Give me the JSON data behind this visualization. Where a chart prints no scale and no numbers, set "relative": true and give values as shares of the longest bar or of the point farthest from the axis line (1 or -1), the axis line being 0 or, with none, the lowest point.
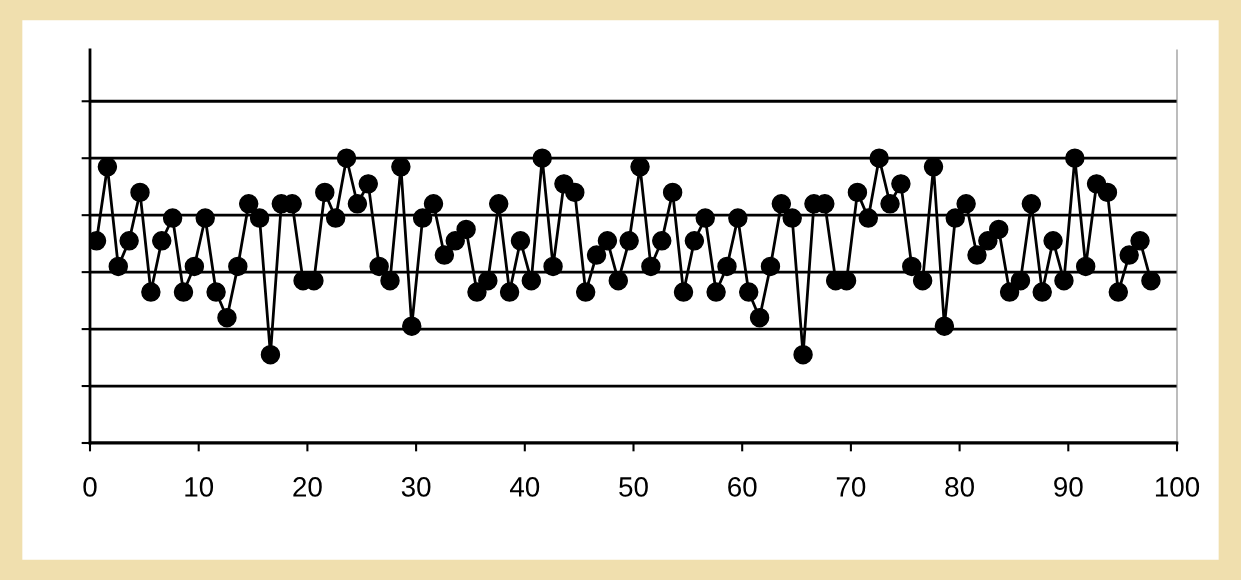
{
  "chart_data": {
    "type": "line",
    "relative": true,
    "xlim": [
      0,
      100
    ],
    "xticks": [
      0,
      10,
      20,
      30,
      40,
      50,
      60,
      70,
      80,
      90,
      100
    ],
    "grid": "y",
    "marker": "circle",
    "line_style": "solid",
    "tick_labels": "x",
    "x": [
      0.6,
      1.6,
      2.6,
      3.6,
      4.6,
      5.6,
      6.6,
      7.6,
      8.6,
      9.6,
      10.6,
      11.6,
      12.6,
      13.6,
      14.6,
      15.6,
      16.6,
      17.6,
      18.6,
      19.6,
      20.6,
      21.6,
      22.6,
      23.6,
      24.6,
      25.6,
      26.6,
      27.6,
      28.6,
      29.6,
      30.6,
      31.6,
      32.6,
      33.6,
      34.6,
      35.6,
      36.6,
      37.6,
      38.6,
      39.6,
      40.6,
      41.6,
      42.6,
      43.6,
      44.6,
      45.6,
      46.6,
      47.6,
      48.6,
      49.6,
      50.6,
      51.6,
      52.6,
      53.6,
      54.6,
      55.6,
      56.6,
      57.6,
      58.6,
      59.6,
      60.6,
      61.6,
      62.6,
      63.6,
      64.6,
      65.6,
      66.6,
      67.6,
      68.6,
      69.6,
      70.6,
      71.6,
      72.6,
      73.6,
      74.6,
      75.6,
      76.6,
      77.6,
      78.6,
      79.6,
      80.6,
      81.6,
      82.6,
      83.6,
      84.6,
      85.6,
      86.6,
      87.6,
      88.6,
      89.6,
      90.6,
      91.6,
      92.6,
      93.6,
      94.6,
      95.6,
      96.6,
      97.6
    ],
    "series": [
      {
        "color": "#000000",
        "values": [
          0.71,
          0.97,
          0.62,
          0.71,
          0.88,
          0.53,
          0.71,
          0.79,
          0.53,
          0.62,
          0.79,
          0.53,
          0.44,
          0.62,
          0.84,
          0.79,
          0.31,
          0.84,
          0.84,
          0.57,
          0.57,
          0.88,
          0.79,
          1,
          0.84,
          0.91,
          0.62,
          0.57,
          0.97,
          0.41,
          0.79,
          0.84,
          0.66,
          0.71,
          0.75,
          0.53,
          0.57,
          0.84,
          0.53,
          0.71,
          0.57,
          1,
          0.62,
          0.91,
          0.88,
          0.53,
          0.66,
          0.71,
          0.57,
          0.71,
          0.97,
          0.62,
          0.71,
          0.88,
          0.53,
          0.71,
          0.79,
          0.53,
          0.62,
          0.79,
          0.53,
          0.44,
          0.62,
          0.84,
          0.79,
          0.31,
          0.84,
          0.84,
          0.57,
          0.57,
          0.88,
          0.79,
          1,
          0.84,
          0.91,
          0.62,
          0.57,
          0.97,
          0.41,
          0.79,
          0.84,
          0.66,
          0.71,
          0.75,
          0.53,
          0.57,
          0.84,
          0.53,
          0.71,
          0.57,
          1,
          0.62,
          0.91,
          0.88,
          0.53,
          0.66,
          0.71,
          0.57
        ]
      }
    ]
  }
}
